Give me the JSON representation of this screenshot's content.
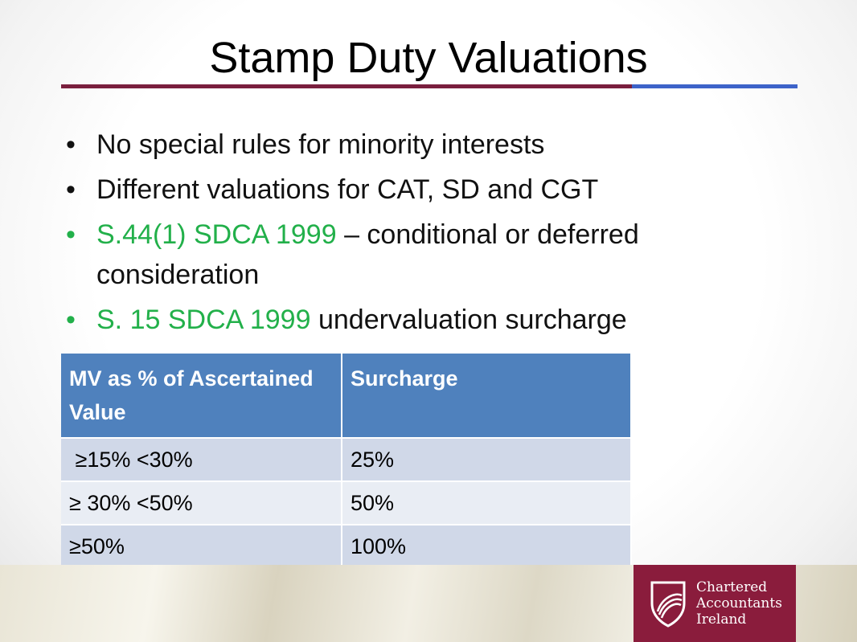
{
  "slide": {
    "title": "Stamp Duty Valuations",
    "bullets": [
      {
        "text": "No special rules for minority interests"
      },
      {
        "text": "Different valuations for CAT, SD and CGT"
      },
      {
        "highlight": "S.44(1) SDCA 1999",
        "text": " – conditional or deferred consideration"
      },
      {
        "highlight": "S. 15 SDCA 1999",
        "text": " undervaluation surcharge"
      }
    ],
    "bullet_symbol": "•"
  },
  "table": {
    "headers": [
      "MV as % of Ascertained Value",
      "Surcharge"
    ],
    "rows": [
      [
        " ≥15% <30%",
        "25%"
      ],
      [
        "≥ 30% <50%",
        "50%"
      ],
      [
        "≥50%",
        "100%"
      ]
    ]
  },
  "logo": {
    "lines": [
      "Chartered",
      "Accountants",
      "Ireland"
    ],
    "icon": "swirl-shield-icon"
  },
  "colors": {
    "accent_maroon": "#7a1f3e",
    "accent_blue": "#3d63c9",
    "highlight_green": "#22b04a",
    "table_header": "#4f81bd",
    "logo_bg": "#8a1c3c"
  }
}
